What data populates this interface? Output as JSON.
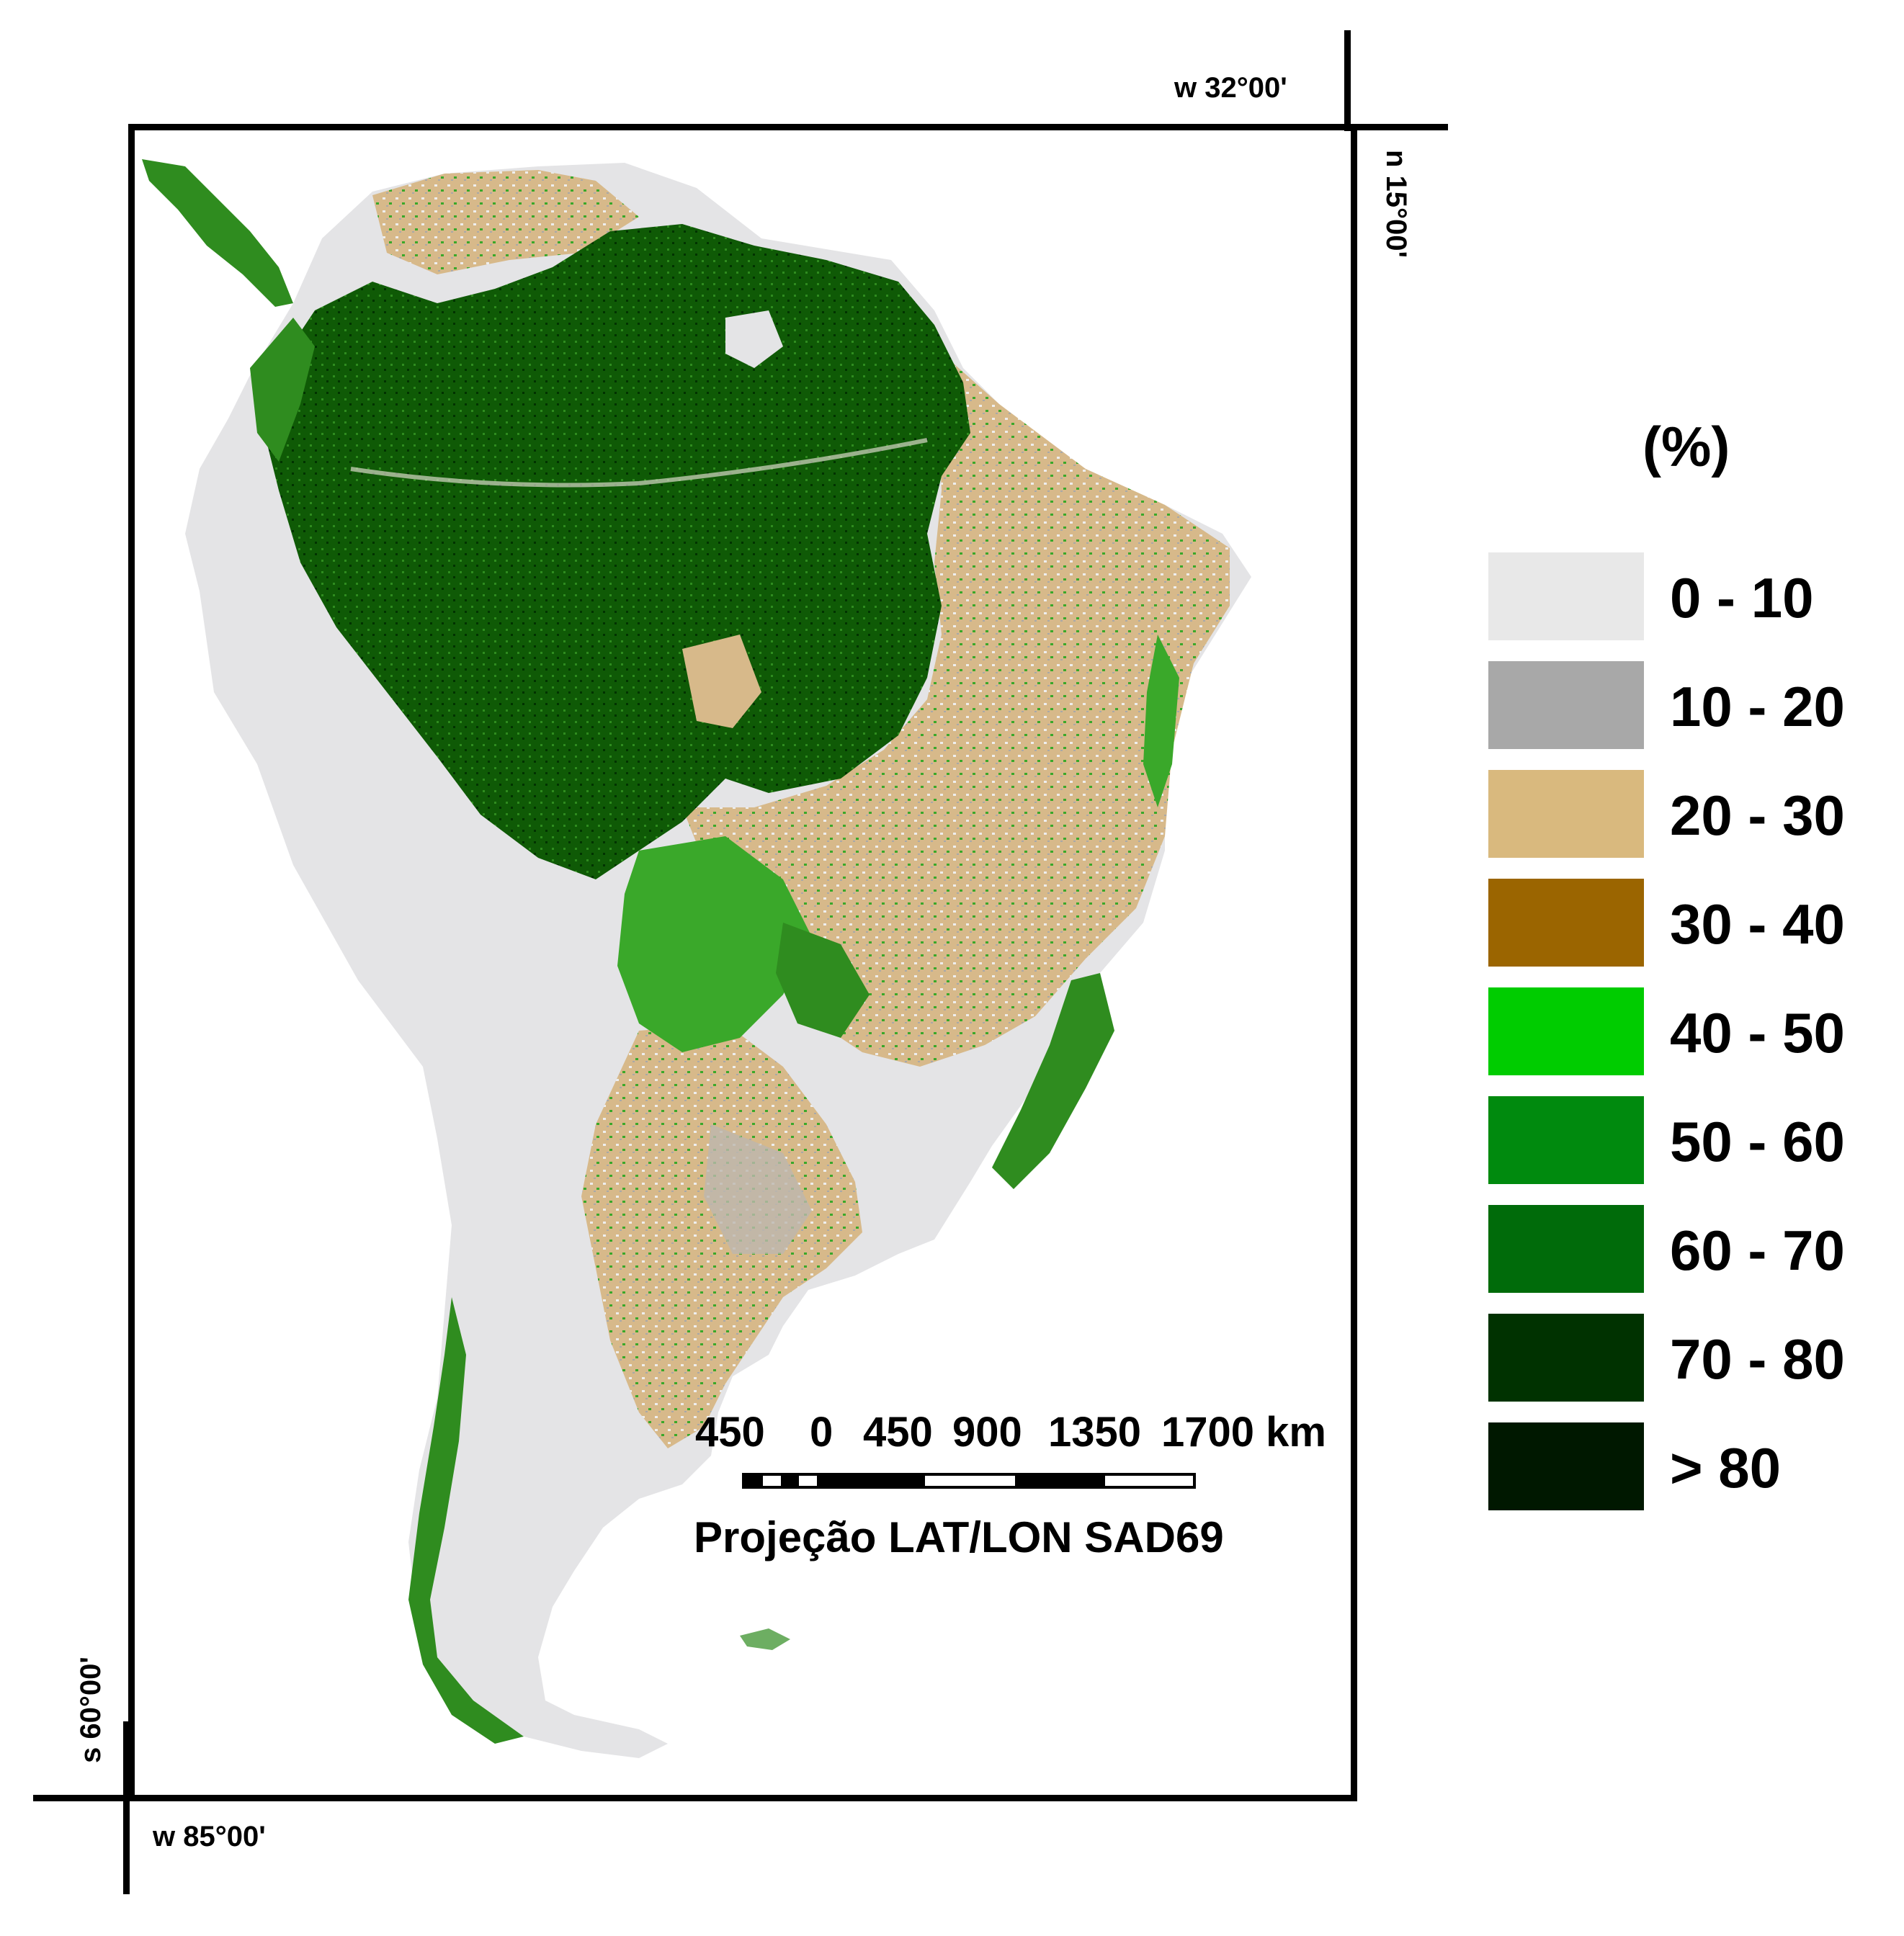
{
  "map": {
    "top_right_lon": "w 32°00'",
    "top_right_lat": "n 15°00'",
    "bottom_left_lon": "w 85°00'",
    "bottom_left_lat": "s 60°00'"
  },
  "scale": {
    "labels": [
      "450",
      "0",
      "450",
      "900",
      "1350",
      "1700 km"
    ],
    "projection": "Projeção LAT/LON SAD69"
  },
  "legend": {
    "title": "(%)",
    "items": [
      {
        "label": "0 - 10",
        "color": "#e8e8e8"
      },
      {
        "label": "10 - 20",
        "color": "#a8a8a8"
      },
      {
        "label": "20 - 30",
        "color": "#d9b97e"
      },
      {
        "label": "30 - 40",
        "color": "#9b6500"
      },
      {
        "label": "40 - 50",
        "color": "#00cc00"
      },
      {
        "label": "50 - 60",
        "color": "#008a0e"
      },
      {
        "label": "60 - 70",
        "color": "#006b0a"
      },
      {
        "label": "70 - 80",
        "color": "#003200"
      },
      {
        "label": "> 80",
        "color": "#001800"
      }
    ]
  },
  "colors": {
    "land_base": "#e4e4e6",
    "savanna": "#d7b98a",
    "forest_dense": "#0f5a06",
    "forest_mid": "#2f8c1f",
    "forest_light": "#3aa82a",
    "frame": "#000000"
  }
}
